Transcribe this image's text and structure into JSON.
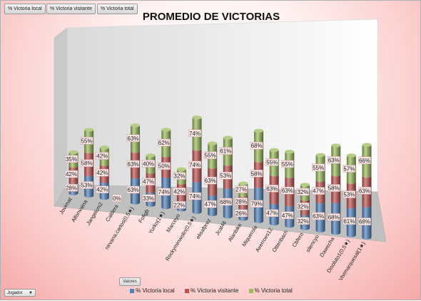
{
  "filter_buttons": [
    "% Victoria local",
    "% Victoria visitante",
    "% Victoria total"
  ],
  "colors": {
    "local": "#4f81bd",
    "visitante": "#c0504d",
    "total": "#9bbb59"
  },
  "valores_label": "Valores",
  "jugador_label": "Jugador",
  "chart_data": {
    "type": "bar",
    "stacked": true,
    "title": "PROMEDIO DE VICTORIAS",
    "categories": [
      "Jovimat",
      "Alfonvaina",
      "Jangelcm2",
      "Caldera",
      "nirvana.carlos(0,5★)",
      "Fofigb",
      "Yurko(1★)",
      "Marceyo",
      "Rockyminwolin(0,5★)",
      "elisafprez",
      "Jcat46",
      "Alanbike",
      "Miquerola",
      "Averroes12",
      "Ottenbach",
      "Cbfero",
      "silencyo",
      "Dawecha",
      "Disoluto1(0,5★)",
      "Vivimarquesal(1★)"
    ],
    "series": [
      {
        "name": "% Victoria local",
        "values": [
          28,
          53,
          42,
          null,
          63,
          33,
          74,
          22,
          74,
          47,
          68,
          26,
          79,
          47,
          47,
          32,
          63,
          68,
          61,
          68
        ],
        "labels": [
          "28%",
          "53%",
          "42%",
          "0%",
          "63%",
          "33%",
          "74%",
          "22%",
          "74%",
          "47%",
          "68%",
          "26%",
          "79%",
          "47%",
          "47%",
          "32%",
          "63%",
          "68%",
          "61%",
          "68%"
        ]
      },
      {
        "name": "% Victoria visitante",
        "values": [
          42,
          58,
          42,
          null,
          63,
          47,
          50,
          42,
          74,
          63,
          53,
          28,
          58,
          63,
          63,
          32,
          47,
          58,
          53,
          63
        ],
        "labels": [
          "42%",
          "58%",
          "42%",
          "",
          "63%",
          "47%",
          "50%",
          "42%",
          "74%",
          "63%",
          "53%",
          "28%",
          "58%",
          "63%",
          "63%",
          "32%",
          "47%",
          "58%",
          "53%",
          "63%"
        ]
      },
      {
        "name": "% Victoria total",
        "values": [
          35,
          55,
          42,
          null,
          63,
          40,
          62,
          32,
          74,
          55,
          61,
          27,
          68,
          55,
          55,
          32,
          55,
          63,
          57,
          66
        ],
        "labels": [
          "35%",
          "55%",
          "42%",
          "",
          "63%",
          "40%",
          "62%",
          "32%",
          "74%",
          "55%",
          "61%",
          "27%",
          "68%",
          "55%",
          "55%",
          "32%",
          "55%",
          "63%",
          "57%",
          "66%"
        ]
      }
    ],
    "legend_position": "bottom",
    "grid": false
  }
}
